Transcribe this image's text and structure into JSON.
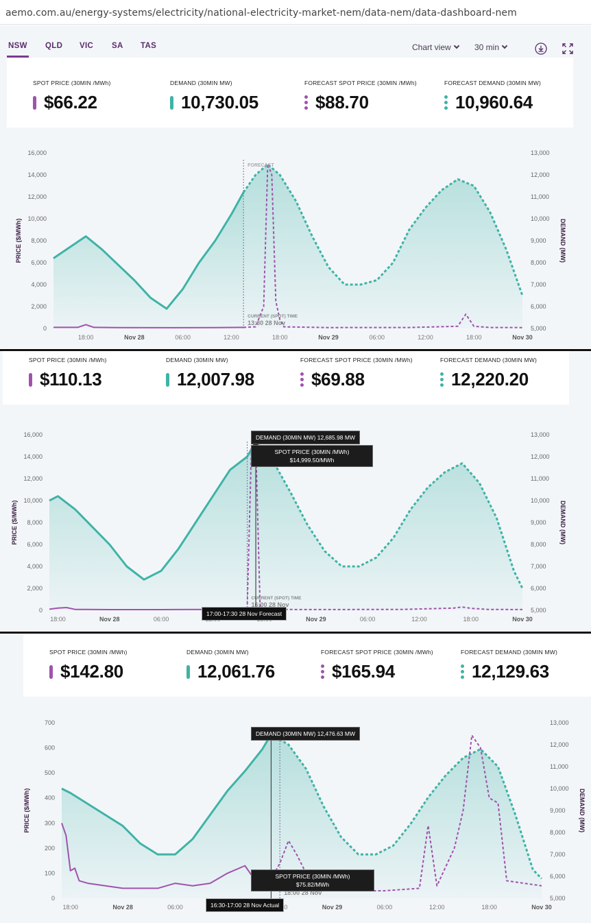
{
  "browser": {
    "url": "aemo.com.au/energy-systems/electricity/national-electricity-market-nem/data-nem/data-dashboard-nem"
  },
  "nav": {
    "regions": [
      "NSW",
      "QLD",
      "VIC",
      "SA",
      "TAS"
    ],
    "active_region": "NSW",
    "chart_view_label": "Chart view",
    "interval_label": "30 min"
  },
  "colors": {
    "price": "#a052ad",
    "demand": "#3fb3a6",
    "accent": "#7b3b8c"
  },
  "axes": {
    "left_title": "PRICE ($/MWh)",
    "right_title": "DEMAND (MW)",
    "x_ticks": [
      "18:00",
      "Nov 28",
      "06:00",
      "12:00",
      "18:00",
      "Nov 29",
      "06:00",
      "12:00",
      "18:00",
      "Nov 30"
    ],
    "forecast_label": "FORECAST"
  },
  "panels": [
    {
      "cards": [
        {
          "label": "SPOT PRICE (30MIN /MWh)",
          "value": "$66.22"
        },
        {
          "label": "DEMAND (30MIN MW)",
          "value": "10,730.05"
        },
        {
          "label": "FORECAST SPOT PRICE (30MIN /MWh)",
          "value": "$88.70"
        },
        {
          "label": "FORECAST DEMAND (30MIN MW)",
          "value": "10,960.64"
        }
      ],
      "current_label": "CURRENT (SPOT) TIME",
      "current_time": "13:30 28 Nov",
      "price_ticks": [
        "16,000",
        "14,000",
        "12,000",
        "10,000",
        "8,000",
        "6,000",
        "4,000",
        "2,000",
        "0"
      ],
      "demand_ticks": [
        "13,000",
        "12,000",
        "11,000",
        "10,000",
        "9,000",
        "8,000",
        "7,000",
        "6,000",
        "5,000"
      ]
    },
    {
      "cards": [
        {
          "label": "SPOT PRICE (30MIN /MWh)",
          "value": "$110.13"
        },
        {
          "label": "DEMAND (30MIN MW)",
          "value": "12,007.98"
        },
        {
          "label": "FORECAST SPOT PRICE (30MIN /MWh)",
          "value": "$69.88"
        },
        {
          "label": "FORECAST DEMAND (30MIN MW)",
          "value": "12,220.20"
        }
      ],
      "current_label": "CURRENT (SPOT) TIME",
      "current_time": "16:00 28 Nov",
      "tooltip_demand": "DEMAND (30MIN MW) 12,685.98 MW",
      "tooltip_price_title": "SPOT PRICE (30MIN /MWh)",
      "tooltip_price_value": "$14,999.50/MWh",
      "tooltip_time": "17:00-17:30 28 Nov Forecast",
      "price_ticks": [
        "16,000",
        "14,000",
        "12,000",
        "10,000",
        "8,000",
        "6,000",
        "4,000",
        "2,000",
        "0"
      ],
      "demand_ticks": [
        "13,000",
        "12,000",
        "11,000",
        "10,000",
        "9,000",
        "8,000",
        "7,000",
        "6,000",
        "5,000"
      ]
    },
    {
      "cards": [
        {
          "label": "SPOT PRICE (30MIN /MWh)",
          "value": "$142.80"
        },
        {
          "label": "DEMAND (30MIN MW)",
          "value": "12,061.76"
        },
        {
          "label": "FORECAST SPOT PRICE (30MIN /MWh)",
          "value": "$165.94"
        },
        {
          "label": "FORECAST DEMAND (30MIN MW)",
          "value": "12,129.63"
        }
      ],
      "current_label": "CURRENT (SPOT) TIME",
      "current_time": "18:00 28 Nov",
      "tooltip_demand": "DEMAND (30MIN MW) 12,476.63 MW",
      "tooltip_price_title": "SPOT PRICE (30MIN /MWh)",
      "tooltip_price_value": "$75.82/MWh",
      "tooltip_time": "16:30-17:00 28 Nov Actual",
      "price_ticks": [
        "700",
        "600",
        "500",
        "400",
        "300",
        "200",
        "100",
        "0"
      ],
      "demand_ticks": [
        "13,000",
        "12,000",
        "11,000",
        "10,000",
        "9,000",
        "8,000",
        "7,000",
        "6,000",
        "5,000"
      ]
    }
  ],
  "chart_data": [
    {
      "type": "line",
      "title": "",
      "x_unit": "hours from 18:00 27 Nov",
      "ylabel": "PRICE ($/MWh)",
      "ylim": [
        0,
        16000
      ],
      "y2label": "DEMAND (MW)",
      "y2lim": [
        5000,
        13000
      ],
      "current_time_hours": 19.5,
      "series": [
        {
          "name": "DEMAND (30MIN MW)",
          "axis": "right",
          "style": "solid",
          "x": [
            -4,
            -2,
            0,
            2,
            4,
            6,
            8,
            10,
            12,
            14,
            16,
            18,
            19.5
          ],
          "values": [
            8200,
            8700,
            9200,
            8600,
            7900,
            7200,
            6400,
            5900,
            6800,
            8000,
            9000,
            10200,
            11200
          ]
        },
        {
          "name": "FORECAST DEMAND (30MIN MW)",
          "axis": "right",
          "style": "dashed",
          "x": [
            19.5,
            21,
            22.5,
            24,
            26,
            28,
            30,
            32,
            34,
            36,
            38,
            40,
            42,
            44,
            46,
            48,
            50,
            52,
            54
          ],
          "values": [
            11200,
            12000,
            12480,
            12000,
            10800,
            9200,
            7800,
            7000,
            7000,
            7200,
            8000,
            9500,
            10500,
            11300,
            11800,
            11500,
            10300,
            8600,
            6500
          ]
        },
        {
          "name": "SPOT PRICE (30MIN /MWh)",
          "axis": "left",
          "style": "solid",
          "x": [
            -4,
            -1,
            0,
            1,
            4,
            10,
            16,
            19.5
          ],
          "values": [
            100,
            100,
            350,
            100,
            80,
            70,
            80,
            100
          ]
        },
        {
          "name": "FORECAST SPOT PRICE (30MIN /MWh)",
          "axis": "left",
          "style": "dashed",
          "x": [
            19.5,
            21,
            22,
            22.5,
            23,
            23.5,
            24,
            24.5,
            30,
            40,
            46,
            47,
            48,
            50,
            54
          ],
          "values": [
            100,
            150,
            2000,
            15000,
            14000,
            2500,
            800,
            150,
            80,
            90,
            200,
            1300,
            200,
            90,
            80
          ]
        }
      ]
    },
    {
      "type": "line",
      "title": "",
      "x_unit": "hours from 18:00 27 Nov",
      "ylabel": "PRICE ($/MWh)",
      "ylim": [
        0,
        16000
      ],
      "y2label": "DEMAND (MW)",
      "y2lim": [
        5000,
        13000
      ],
      "current_time_hours": 22,
      "series": [
        {
          "name": "DEMAND (30MIN MW)",
          "axis": "right",
          "style": "solid",
          "x": [
            -1,
            0,
            2,
            4,
            6,
            8,
            10,
            12,
            14,
            16,
            18,
            20,
            22,
            23
          ],
          "values": [
            10000,
            10200,
            9600,
            8800,
            8000,
            7000,
            6400,
            6800,
            7800,
            9000,
            10200,
            11400,
            12000,
            12686
          ]
        },
        {
          "name": "FORECAST DEMAND (30MIN MW)",
          "axis": "right",
          "style": "dashed",
          "x": [
            23,
            25,
            27,
            29,
            31,
            33,
            35,
            37,
            39,
            41,
            43,
            45,
            47,
            49,
            51,
            53,
            54
          ],
          "values": [
            12686,
            11800,
            10400,
            8900,
            7700,
            7000,
            7000,
            7400,
            8300,
            9600,
            10600,
            11300,
            11700,
            10800,
            9200,
            6800,
            6000
          ]
        },
        {
          "name": "SPOT PRICE (30MIN /MWh)",
          "axis": "left",
          "style": "solid",
          "x": [
            -1,
            0,
            1,
            2,
            6,
            12,
            18,
            22
          ],
          "values": [
            100,
            200,
            250,
            80,
            60,
            60,
            80,
            110
          ]
        },
        {
          "name": "FORECAST SPOT PRICE (30MIN /MWh)",
          "axis": "left",
          "style": "dashed",
          "x": [
            22,
            22.5,
            23,
            23.5,
            24,
            30,
            40,
            46,
            47,
            48,
            50,
            54
          ],
          "values": [
            110,
            14999.5,
            14999.5,
            200,
            80,
            70,
            80,
            200,
            300,
            180,
            80,
            70
          ]
        }
      ]
    },
    {
      "type": "line",
      "title": "",
      "x_unit": "hours from 18:00 27 Nov",
      "ylabel": "PRICE ($/MWh)",
      "ylim": [
        0,
        700
      ],
      "y2label": "DEMAND (MW)",
      "y2lim": [
        5000,
        13000
      ],
      "current_time_hours": 24,
      "series": [
        {
          "name": "DEMAND (30MIN MW)",
          "axis": "right",
          "style": "solid",
          "x": [
            -1,
            0,
            2,
            4,
            6,
            8,
            10,
            12,
            14,
            16,
            18,
            20,
            22,
            23
          ],
          "values": [
            10000,
            9800,
            9300,
            8800,
            8300,
            7500,
            7000,
            7000,
            7700,
            8800,
            9900,
            10800,
            11800,
            12476
          ]
        },
        {
          "name": "FORECAST DEMAND (30MIN MW)",
          "axis": "right",
          "style": "dashed",
          "x": [
            23,
            25,
            27,
            29,
            31,
            33,
            35,
            37,
            39,
            41,
            43,
            45,
            47,
            49,
            51,
            53,
            54
          ],
          "values": [
            12476,
            12000,
            10900,
            9200,
            7800,
            7000,
            7000,
            7400,
            8400,
            9600,
            10600,
            11400,
            11800,
            11000,
            8800,
            6300,
            5900
          ]
        },
        {
          "name": "SPOT PRICE (30MIN /MWh)",
          "axis": "left",
          "style": "solid",
          "x": [
            -1,
            -0.5,
            0,
            0.5,
            1,
            2,
            4,
            6,
            8,
            10,
            12,
            14,
            16,
            18,
            20,
            21,
            22,
            23
          ],
          "values": [
            300,
            250,
            110,
            120,
            70,
            60,
            50,
            40,
            40,
            40,
            60,
            50,
            60,
            100,
            130,
            80,
            110,
            76
          ]
        },
        {
          "name": "FORECAST SPOT PRICE (30MIN /MWh)",
          "axis": "left",
          "style": "dashed",
          "x": [
            23,
            24,
            25,
            26,
            27,
            28,
            30,
            32,
            36,
            40,
            41,
            42,
            44,
            45,
            46,
            47,
            48,
            49,
            50,
            52,
            54
          ],
          "values": [
            76,
            140,
            230,
            170,
            100,
            50,
            40,
            30,
            30,
            40,
            290,
            50,
            200,
            350,
            650,
            600,
            400,
            380,
            70,
            60,
            50
          ]
        }
      ]
    }
  ]
}
